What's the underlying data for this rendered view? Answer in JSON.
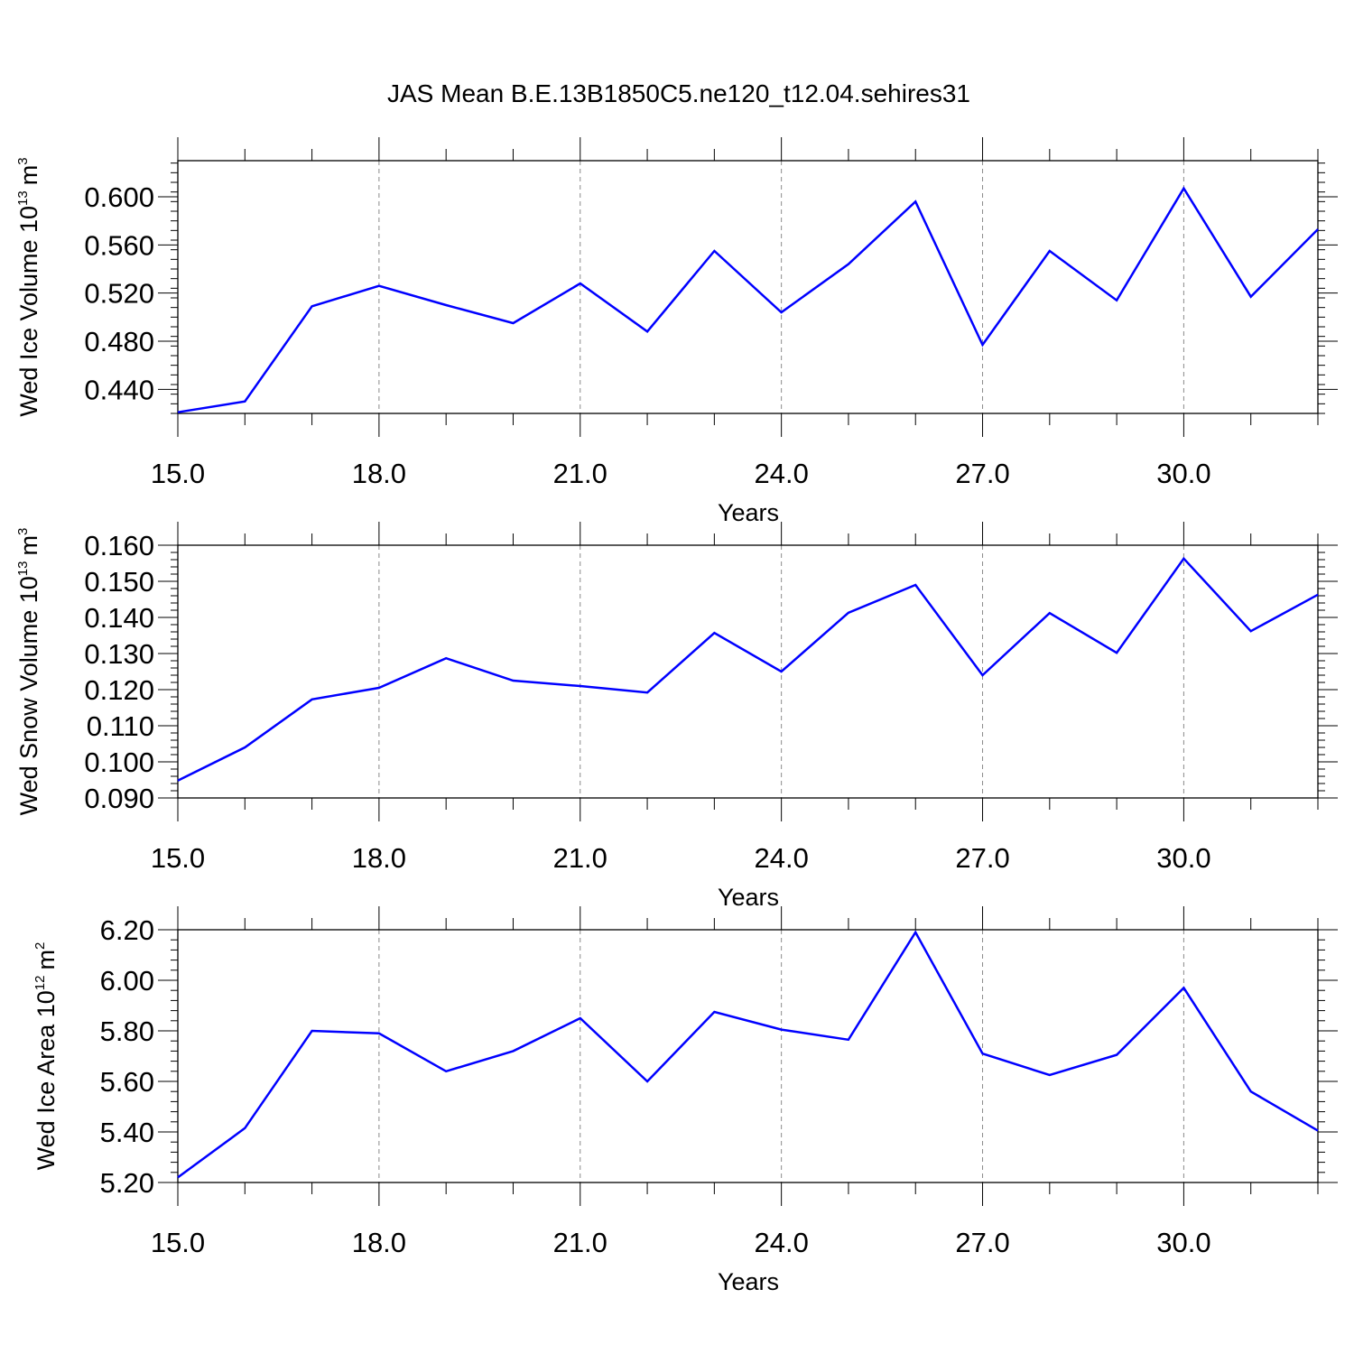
{
  "figure_title": "JAS Mean B.E.13B1850C5.ne120_t12.04.sehires31",
  "line_color": "#0000ff",
  "chart_data": [
    {
      "type": "line",
      "title": "",
      "xlabel": "Years",
      "ylabel": {
        "text": "Wed Ice Volume 10",
        "exp": "13",
        "unit": "m",
        "unit_exp": "3"
      },
      "xlim": [
        15,
        32
      ],
      "ylim": [
        0.42,
        0.63
      ],
      "x_ticks": [
        15,
        18,
        21,
        24,
        27,
        30
      ],
      "x_tick_labels": [
        "15.0",
        "18.0",
        "21.0",
        "24.0",
        "27.0",
        "30.0"
      ],
      "y_ticks": [
        0.44,
        0.48,
        0.52,
        0.56,
        0.6
      ],
      "y_tick_labels": [
        "0.440",
        "0.480",
        "0.520",
        "0.560",
        "0.600"
      ],
      "y_minor_step": 0.008,
      "grid": "dashed vertical lines at major x ticks",
      "x": [
        15,
        16,
        17,
        18,
        19,
        20,
        21,
        22,
        23,
        24,
        25,
        26,
        27,
        28,
        29,
        30,
        31,
        32
      ],
      "series": [
        {
          "values": [
            0.421,
            0.43,
            0.509,
            0.526,
            0.51,
            0.495,
            0.528,
            0.488,
            0.555,
            0.504,
            0.544,
            0.596,
            0.477,
            0.555,
            0.514,
            0.607,
            0.517,
            0.573
          ]
        }
      ]
    },
    {
      "type": "line",
      "title": "",
      "xlabel": "Years",
      "ylabel": {
        "text": "Wed Snow Volume 10",
        "exp": "13",
        "unit": "m",
        "unit_exp": "3"
      },
      "xlim": [
        15,
        32
      ],
      "ylim": [
        0.09,
        0.16
      ],
      "x_ticks": [
        15,
        18,
        21,
        24,
        27,
        30
      ],
      "x_tick_labels": [
        "15.0",
        "18.0",
        "21.0",
        "24.0",
        "27.0",
        "30.0"
      ],
      "y_ticks": [
        0.09,
        0.1,
        0.11,
        0.12,
        0.13,
        0.14,
        0.15,
        0.16
      ],
      "y_tick_labels": [
        "0.090",
        "0.100",
        "0.110",
        "0.120",
        "0.130",
        "0.140",
        "0.150",
        "0.160"
      ],
      "y_minor_step": 0.002,
      "grid": "dashed vertical lines at major x ticks",
      "x": [
        15,
        16,
        17,
        18,
        19,
        20,
        21,
        22,
        23,
        24,
        25,
        26,
        27,
        28,
        29,
        30,
        31,
        32
      ],
      "series": [
        {
          "values": [
            0.0948,
            0.104,
            0.1173,
            0.1205,
            0.1287,
            0.1225,
            0.121,
            0.1192,
            0.1357,
            0.125,
            0.1413,
            0.149,
            0.124,
            0.1412,
            0.1302,
            0.1563,
            0.1362,
            0.1463
          ]
        }
      ]
    },
    {
      "type": "line",
      "title": "",
      "xlabel": "Years",
      "ylabel": {
        "text": "Wed Ice Area 10",
        "exp": "12",
        "unit": "m",
        "unit_exp": "2"
      },
      "xlim": [
        15,
        32
      ],
      "ylim": [
        5.2,
        6.2
      ],
      "x_ticks": [
        15,
        18,
        21,
        24,
        27,
        30
      ],
      "x_tick_labels": [
        "15.0",
        "18.0",
        "21.0",
        "24.0",
        "27.0",
        "30.0"
      ],
      "y_ticks": [
        5.2,
        5.4,
        5.6,
        5.8,
        6.0,
        6.2
      ],
      "y_tick_labels": [
        "5.20",
        "5.40",
        "5.60",
        "5.80",
        "6.00",
        "6.20"
      ],
      "y_minor_step": 0.04,
      "grid": "dashed vertical lines at major x ticks",
      "x": [
        15,
        16,
        17,
        18,
        19,
        20,
        21,
        22,
        23,
        24,
        25,
        26,
        27,
        28,
        29,
        30,
        31,
        32
      ],
      "series": [
        {
          "values": [
            5.22,
            5.415,
            5.8,
            5.79,
            5.64,
            5.72,
            5.85,
            5.6,
            5.875,
            5.805,
            5.765,
            6.19,
            5.71,
            5.625,
            5.705,
            5.97,
            5.56,
            5.405
          ]
        }
      ]
    }
  ]
}
